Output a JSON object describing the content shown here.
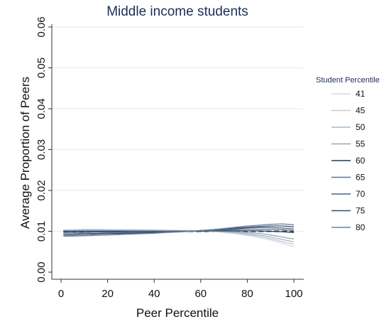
{
  "chart_data": {
    "type": "line",
    "title": "Middle income students",
    "xlabel": "Peer Percentile",
    "ylabel": "Average Proportion of Peers",
    "xlim": [
      0,
      100
    ],
    "ylim": [
      0,
      0.06
    ],
    "xticks": [
      0,
      20,
      40,
      60,
      80,
      100
    ],
    "yticks": [
      "0.00",
      "0.01",
      "0.02",
      "0.03",
      "0.04",
      "0.05",
      "0.06"
    ],
    "grid": true,
    "legend": {
      "title": "Student Percentile",
      "placement": "right"
    },
    "reference_line": {
      "y": 0.01,
      "style": "dashed"
    },
    "x": [
      1,
      5,
      10,
      15,
      20,
      25,
      30,
      35,
      40,
      45,
      50,
      55,
      60,
      65,
      70,
      75,
      80,
      85,
      90,
      95,
      100
    ],
    "series": [
      {
        "name": "41",
        "color": "#d2dae4",
        "values": [
          0.0104,
          0.0104,
          0.0105,
          0.0105,
          0.0104,
          0.0104,
          0.0104,
          0.0104,
          0.0103,
          0.0103,
          0.0102,
          0.0102,
          0.0101,
          0.01,
          0.0097,
          0.0094,
          0.009,
          0.0085,
          0.0079,
          0.0071,
          0.0062
        ]
      },
      {
        "name": "45",
        "color": "#bfcad7",
        "values": [
          0.0103,
          0.0103,
          0.0104,
          0.0104,
          0.0104,
          0.0103,
          0.0103,
          0.0103,
          0.0103,
          0.0102,
          0.0102,
          0.0102,
          0.0101,
          0.01,
          0.0098,
          0.0095,
          0.0092,
          0.0088,
          0.0082,
          0.0075,
          0.0068
        ]
      },
      {
        "name": "50",
        "color": "#a9b8c9",
        "values": [
          0.0102,
          0.0102,
          0.0103,
          0.0103,
          0.0103,
          0.0103,
          0.0103,
          0.0102,
          0.0102,
          0.0102,
          0.0102,
          0.0101,
          0.0101,
          0.01,
          0.0099,
          0.0097,
          0.0094,
          0.0091,
          0.0086,
          0.008,
          0.0074
        ]
      },
      {
        "name": "55",
        "color": "#93a5ba",
        "values": [
          0.0101,
          0.0101,
          0.0102,
          0.0102,
          0.0102,
          0.0102,
          0.0102,
          0.0102,
          0.0102,
          0.0101,
          0.0101,
          0.0101,
          0.0101,
          0.0101,
          0.01,
          0.0099,
          0.0097,
          0.0095,
          0.0091,
          0.0086,
          0.0081
        ]
      },
      {
        "name": "60",
        "color": "#213a5c",
        "values": [
          0.01,
          0.01,
          0.01,
          0.01,
          0.01,
          0.01,
          0.01,
          0.01,
          0.01,
          0.01,
          0.01,
          0.01,
          0.01,
          0.0101,
          0.0101,
          0.0101,
          0.0101,
          0.0101,
          0.01,
          0.0099,
          0.0097
        ]
      },
      {
        "name": "65",
        "color": "#5d7590",
        "values": [
          0.0097,
          0.0097,
          0.0097,
          0.0098,
          0.0098,
          0.0098,
          0.0099,
          0.0099,
          0.0099,
          0.01,
          0.01,
          0.01,
          0.0101,
          0.0102,
          0.0103,
          0.0104,
          0.0105,
          0.0105,
          0.0105,
          0.0104,
          0.0102
        ]
      },
      {
        "name": "70",
        "color": "#4a6382",
        "values": [
          0.0094,
          0.0094,
          0.0095,
          0.0095,
          0.0096,
          0.0096,
          0.0097,
          0.0097,
          0.0098,
          0.0099,
          0.0099,
          0.01,
          0.0101,
          0.0103,
          0.0104,
          0.0106,
          0.0108,
          0.0109,
          0.0109,
          0.0108,
          0.0106
        ]
      },
      {
        "name": "75",
        "color": "#384f6e",
        "values": [
          0.0091,
          0.0091,
          0.0092,
          0.0093,
          0.0094,
          0.0094,
          0.0095,
          0.0096,
          0.0097,
          0.0098,
          0.0099,
          0.01,
          0.0102,
          0.0104,
          0.0106,
          0.0108,
          0.011,
          0.0112,
          0.0113,
          0.0113,
          0.0111
        ]
      },
      {
        "name": "80",
        "color": "#6f8399",
        "values": [
          0.0088,
          0.0088,
          0.0089,
          0.009,
          0.0091,
          0.0092,
          0.0093,
          0.0094,
          0.0095,
          0.0097,
          0.0098,
          0.01,
          0.0102,
          0.0104,
          0.0107,
          0.011,
          0.0113,
          0.0115,
          0.0117,
          0.0118,
          0.0116
        ]
      }
    ]
  }
}
